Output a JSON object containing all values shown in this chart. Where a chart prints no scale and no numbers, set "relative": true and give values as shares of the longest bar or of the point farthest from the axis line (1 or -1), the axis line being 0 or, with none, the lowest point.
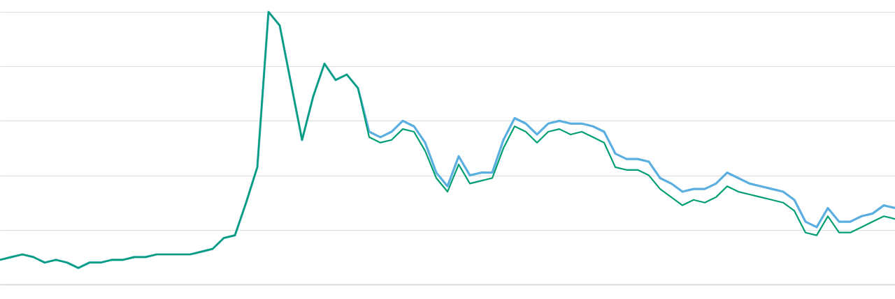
{
  "chart_data": {
    "type": "line",
    "relative": true,
    "grid": "y",
    "line_style": "solid",
    "categories": [
      null,
      null,
      null,
      null,
      null,
      null,
      null,
      null,
      null,
      null,
      null,
      null,
      null,
      null,
      null,
      null,
      null,
      null,
      null,
      null,
      null,
      null,
      null,
      null,
      null,
      null,
      null,
      null,
      null,
      null,
      null,
      null,
      null,
      null,
      null,
      null,
      null,
      null,
      null,
      null,
      null,
      null,
      null,
      null,
      null,
      null,
      null,
      null,
      null,
      null,
      null,
      null,
      null,
      null,
      null,
      null,
      null,
      null,
      null,
      null,
      null,
      null,
      null,
      null,
      null,
      null,
      null,
      null,
      null,
      null,
      null,
      null,
      null,
      null,
      null,
      null,
      null,
      null,
      null,
      null,
      null
    ],
    "series": [
      {
        "color": "#5aafe0",
        "values": [
          0.09,
          0.1,
          0.11,
          0.1,
          0.08,
          0.09,
          0.08,
          0.06,
          0.08,
          0.08,
          0.09,
          0.09,
          0.1,
          0.1,
          0.11,
          0.11,
          0.11,
          0.11,
          0.12,
          0.13,
          0.17,
          0.18,
          0.3,
          0.43,
          1.0,
          0.95,
          0.74,
          0.53,
          0.69,
          0.81,
          0.75,
          0.77,
          0.72,
          0.56,
          0.54,
          0.56,
          0.6,
          0.58,
          0.52,
          0.41,
          0.36,
          0.47,
          0.4,
          0.41,
          0.41,
          0.53,
          0.61,
          0.59,
          0.55,
          0.59,
          0.6,
          0.59,
          0.59,
          0.58,
          0.56,
          0.48,
          0.46,
          0.46,
          0.45,
          0.39,
          0.37,
          0.34,
          0.35,
          0.35,
          0.37,
          0.41,
          0.39,
          0.37,
          0.36,
          0.35,
          0.34,
          0.31,
          0.23,
          0.21,
          0.28,
          0.23,
          0.23,
          0.25,
          0.26,
          0.29,
          0.28
        ]
      },
      {
        "color": "#009e73",
        "values": [
          0.09,
          0.1,
          0.11,
          0.1,
          0.08,
          0.09,
          0.08,
          0.06,
          0.08,
          0.08,
          0.09,
          0.09,
          0.1,
          0.1,
          0.11,
          0.11,
          0.11,
          0.11,
          0.12,
          0.13,
          0.17,
          0.18,
          0.3,
          0.43,
          1.0,
          0.95,
          0.74,
          0.53,
          0.69,
          0.81,
          0.75,
          0.77,
          0.72,
          0.54,
          0.52,
          0.53,
          0.57,
          0.56,
          0.49,
          0.39,
          0.34,
          0.44,
          0.37,
          0.38,
          0.39,
          0.5,
          0.58,
          0.56,
          0.52,
          0.56,
          0.57,
          0.55,
          0.56,
          0.54,
          0.52,
          0.43,
          0.42,
          0.42,
          0.4,
          0.35,
          0.32,
          0.29,
          0.31,
          0.3,
          0.32,
          0.36,
          0.34,
          0.33,
          0.32,
          0.31,
          0.3,
          0.27,
          0.19,
          0.18,
          0.25,
          0.19,
          0.19,
          0.21,
          0.23,
          0.25,
          0.24
        ]
      }
    ]
  }
}
